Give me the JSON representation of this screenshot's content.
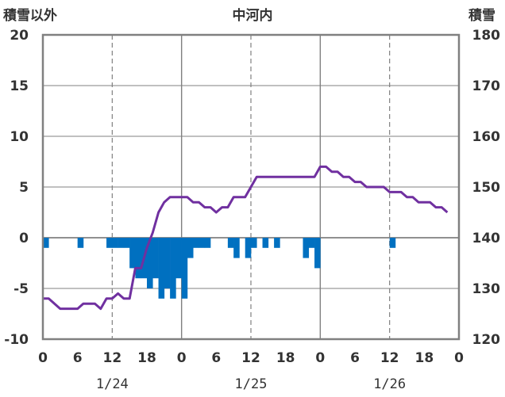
{
  "chart_data": {
    "type": "bar+line",
    "title": "中河内",
    "left_axis_label": "積雪以外",
    "right_axis_label": "積雪",
    "left_ylim": [
      -10,
      20
    ],
    "left_ticks": [
      20,
      15,
      10,
      5,
      0,
      -5,
      -10
    ],
    "right_ylim": [
      120,
      180
    ],
    "right_ticks": [
      180,
      170,
      160,
      150,
      140,
      130,
      120
    ],
    "x_hour_labels": [
      "0",
      "6",
      "12",
      "18",
      "0",
      "6",
      "12",
      "18",
      "0",
      "6",
      "12",
      "18",
      "0"
    ],
    "x_date_labels": [
      "1/24",
      "1/25",
      "1/26"
    ],
    "grid": true,
    "colors": {
      "bars": "#0070C0",
      "line": "#7030A0",
      "axis": "#808080",
      "grid": "#808080"
    },
    "series": [
      {
        "axis": "left",
        "type": "bar",
        "hours": [
          0,
          6,
          11,
          12,
          13,
          14,
          15,
          16,
          17,
          18,
          19,
          20,
          21,
          22,
          23,
          24,
          25,
          26,
          27,
          28,
          32,
          33,
          35,
          36,
          38,
          40,
          45,
          46,
          47,
          60
        ],
        "values": [
          -1,
          -1,
          -1,
          -1,
          -1,
          -1,
          -3,
          -4,
          -4,
          -5,
          -4,
          -6,
          -5,
          -6,
          -4,
          -6,
          -2,
          -1,
          -1,
          -1,
          -1,
          -2,
          -2,
          -1,
          -1,
          -1,
          -2,
          -1,
          -3,
          -1
        ]
      },
      {
        "axis": "right",
        "type": "line",
        "hours": [
          0,
          1,
          2,
          3,
          4,
          5,
          6,
          7,
          8,
          9,
          10,
          11,
          12,
          13,
          14,
          15,
          16,
          17,
          18,
          19,
          20,
          21,
          22,
          23,
          24,
          25,
          26,
          27,
          28,
          29,
          30,
          31,
          32,
          33,
          34,
          35,
          36,
          37,
          38,
          39,
          40,
          41,
          42,
          43,
          44,
          45,
          46,
          47,
          48,
          49,
          50,
          51,
          52,
          53,
          54,
          55,
          56,
          57,
          58,
          59,
          60,
          61,
          62,
          63,
          64,
          65,
          66,
          67,
          68,
          69,
          70
        ],
        "values": [
          128,
          128,
          127,
          126,
          126,
          126,
          126,
          127,
          127,
          127,
          126,
          128,
          128,
          129,
          128,
          128,
          134,
          134,
          138,
          141,
          145,
          147,
          148,
          148,
          148,
          148,
          147,
          147,
          146,
          146,
          145,
          146,
          146,
          148,
          148,
          148,
          150,
          152,
          152,
          152,
          152,
          152,
          152,
          152,
          152,
          152,
          152,
          152,
          154,
          154,
          153,
          153,
          152,
          152,
          151,
          151,
          150,
          150,
          150,
          150,
          149,
          149,
          149,
          148,
          148,
          147,
          147,
          147,
          146,
          146,
          145
        ]
      }
    ]
  }
}
